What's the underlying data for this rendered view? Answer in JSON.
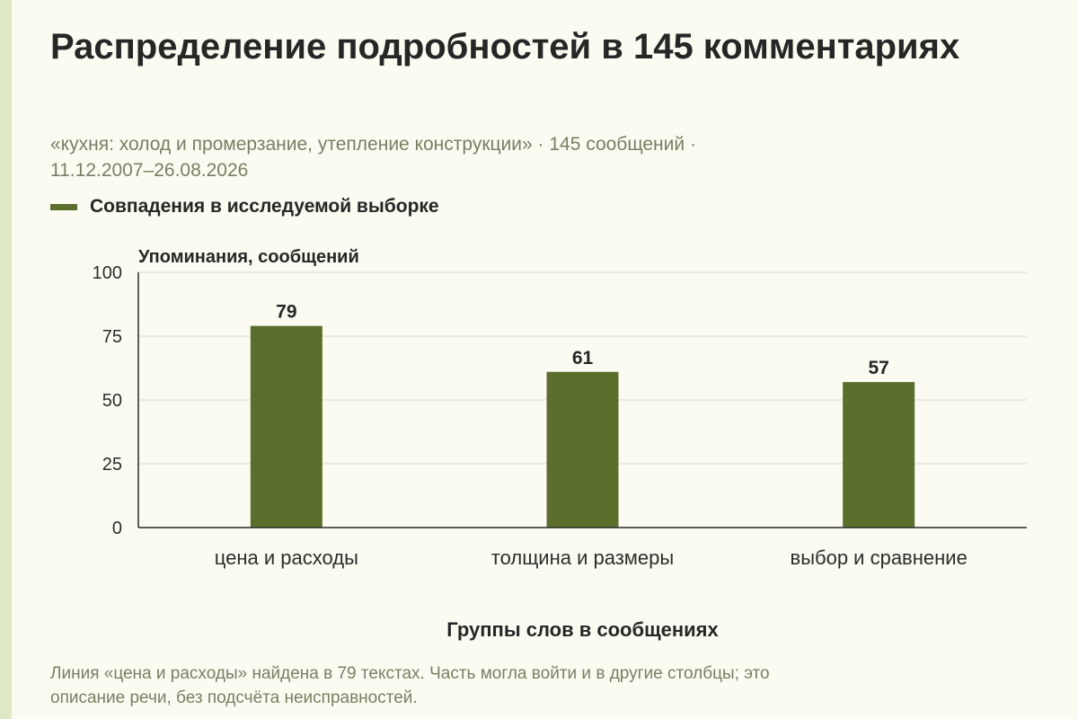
{
  "title": "Распределение подробностей в 145 комментариях",
  "subtitle_line1": "«кухня: холод и промерзание, утепление конструкции» · 145 сообщений ·",
  "subtitle_line2": "11.12.2007–26.08.2026",
  "legend": {
    "label": "Совпадения в исследуемой выборке",
    "color": "#5c6e2b"
  },
  "footnote_line1": "Линия «цена и расходы» найдена в 79 текстах. Часть могла войти и в другие столбцы; это",
  "footnote_line2": "описание речи, без подсчёта неисправностей.",
  "chart_data": {
    "type": "bar",
    "categories": [
      "цена и расходы",
      "толщина и размеры",
      "выбор и сравнение"
    ],
    "series": [
      {
        "name": "Совпадения в исследуемой выборке",
        "values": [
          79,
          61,
          57
        ]
      }
    ],
    "ylabel": "Упоминания, сообщений",
    "xlabel": "Группы слов в сообщениях",
    "ylim": [
      0,
      100
    ],
    "yticks": [
      0,
      25,
      50,
      75,
      100
    ],
    "grid": true,
    "legend_position": "top-left",
    "bar_color": "#5c6e2b"
  }
}
